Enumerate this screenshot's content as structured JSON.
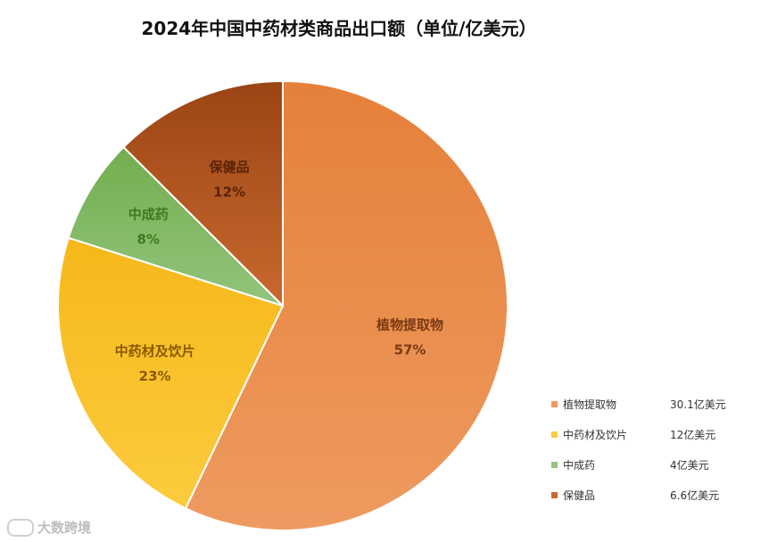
{
  "chart_data": {
    "type": "pie",
    "title": "2024年中国中药材类商品出口额（单位/亿美元）",
    "slices": [
      {
        "name": "植物提取物",
        "percent": "57%",
        "value": 30.1,
        "value_label": "30.1亿美元",
        "color": "#EE9A60",
        "color_dark": "#E5803A",
        "label_color": "#7A3A12"
      },
      {
        "name": "中药材及饮片",
        "percent": "23%",
        "value": 12,
        "value_label": "12亿美元",
        "color": "#FCCB3E",
        "color_dark": "#F6B81A",
        "label_color": "#8A5A00"
      },
      {
        "name": "中成药",
        "percent": "8%",
        "value": 4,
        "value_label": "4亿美元",
        "color": "#93C47D",
        "color_dark": "#72AE4E",
        "label_color": "#3F7A1F"
      },
      {
        "name": "保健品",
        "percent": "12%",
        "value": 6.6,
        "value_label": "6.6亿美元",
        "color": "#C8692F",
        "color_dark": "#9A4514",
        "label_color": "#5A2208"
      }
    ],
    "legend_position": "bottom-right"
  },
  "watermark": "大数跨境"
}
